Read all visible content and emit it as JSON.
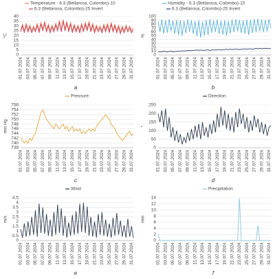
{
  "chart_data": [
    {
      "type": "line",
      "caption": "a",
      "ylabel": "°C",
      "ylim": [
        0,
        40
      ],
      "yticks": [
        0,
        5,
        10,
        15,
        20,
        25,
        30,
        35,
        40
      ],
      "grid": true,
      "categories": [
        "01.07.2024",
        null,
        null,
        null,
        "03.07.2024",
        null,
        null,
        null,
        "05.07.2024",
        null,
        null,
        null,
        "07.07.2024",
        null,
        null,
        null,
        "09.07.2024",
        null,
        null,
        null,
        "11.07.2024",
        null,
        null,
        null,
        "13.07.2024",
        null,
        null,
        null,
        "15.07.2024",
        null,
        null,
        null,
        "17.07.2024",
        null,
        null,
        null,
        "19.07.2024",
        null,
        null,
        null,
        "21.07.2024",
        null,
        null,
        null,
        "23.07.2024",
        null,
        null,
        null,
        "25.07.2024",
        null,
        null,
        null,
        "27.07.2024",
        null,
        null,
        null,
        "29.07.2024",
        null,
        null,
        null,
        "31.07.2024",
        null
      ],
      "series": [
        {
          "name": "Temperature - 6.3 (Bellarosa, Colombo)-10",
          "color": "#e8785e",
          "values": [
            26,
            32,
            25,
            33,
            26,
            31,
            25,
            30,
            26,
            33,
            25,
            34,
            27,
            35,
            26,
            32,
            25,
            31,
            26,
            33,
            27,
            36,
            26,
            37,
            27,
            35,
            26,
            34,
            25,
            32,
            26,
            31,
            25,
            33,
            26,
            34,
            27,
            35,
            26,
            33,
            25,
            31,
            26,
            30,
            25,
            32,
            26,
            33,
            25,
            34,
            26,
            32,
            25,
            31,
            24,
            30,
            25,
            31,
            26,
            30,
            25,
            28
          ]
        },
        {
          "name": "6.3 (Bellarosa, Colombo)-25  Invert",
          "color": "#c9485a",
          "values": [
            24,
            30,
            23,
            31,
            24,
            29,
            23,
            28,
            24,
            31,
            23,
            32,
            25,
            33,
            24,
            30,
            23,
            29,
            24,
            31,
            25,
            34,
            24,
            35,
            25,
            33,
            24,
            32,
            23,
            30,
            24,
            29,
            23,
            31,
            24,
            32,
            25,
            33,
            24,
            31,
            23,
            29,
            24,
            28,
            23,
            30,
            24,
            31,
            23,
            32,
            24,
            30,
            23,
            29,
            22,
            28,
            23,
            29,
            24,
            28,
            23,
            26
          ]
        }
      ]
    },
    {
      "type": "line",
      "caption": "b",
      "ylabel": "%",
      "ylim": [
        0,
        100
      ],
      "yticks": [
        0,
        10,
        20,
        30,
        40,
        50,
        60,
        70,
        80,
        90,
        100
      ],
      "grid": true,
      "categories": [
        "01.07.2024",
        null,
        null,
        null,
        "03.07.2024",
        null,
        null,
        null,
        "05.07.2024",
        null,
        null,
        null,
        "07.07.2024",
        null,
        null,
        null,
        "09.07.2024",
        null,
        null,
        null,
        "11.07.2024",
        null,
        null,
        null,
        "13.07.2024",
        null,
        null,
        null,
        "15.07.2024",
        null,
        null,
        null,
        "17.07.2024",
        null,
        null,
        null,
        "19.07.2024",
        null,
        null,
        null,
        "21.07.2024",
        null,
        null,
        null,
        "23.07.2024",
        null,
        null,
        null,
        "25.07.2024",
        null,
        null,
        null,
        "27.07.2024",
        null,
        null,
        null,
        "29.07.2024",
        null,
        null,
        null,
        "31.07.2024",
        null
      ],
      "series": [
        {
          "name": "Humidity - 6.3 (Bellarosa, Colombo)-10",
          "color": "#5ab4d6",
          "values": [
            88,
            60,
            92,
            55,
            90,
            58,
            93,
            62,
            89,
            55,
            91,
            52,
            90,
            50,
            88,
            57,
            92,
            60,
            90,
            55,
            88,
            48,
            90,
            45,
            87,
            50,
            91,
            52,
            93,
            58,
            90,
            60,
            92,
            55,
            89,
            53,
            90,
            50,
            88,
            56,
            92,
            60,
            93,
            62,
            91,
            57,
            90,
            55,
            92,
            52,
            91,
            57,
            93,
            60,
            94,
            62,
            92,
            60,
            91,
            62,
            93,
            70
          ]
        },
        {
          "name": "6.3 (Bellarosa, Colombo)-25  Invert",
          "color": "#2c3e66",
          "values": [
            8,
            9,
            8,
            10,
            9,
            8,
            9,
            10,
            8,
            9,
            9,
            10,
            10,
            11,
            10,
            11,
            11,
            12,
            11,
            12,
            12,
            13,
            12,
            13,
            12,
            12,
            13,
            13,
            12,
            13,
            13,
            13,
            14,
            14,
            13,
            14,
            14,
            15,
            14,
            15,
            14,
            15,
            15,
            15,
            14,
            15,
            15,
            16,
            15,
            16,
            16,
            15,
            16,
            17,
            16,
            17,
            16,
            17,
            17,
            17,
            16,
            17
          ]
        }
      ]
    },
    {
      "type": "line",
      "caption": "c",
      "ylabel": "mm Hg",
      "ylim": [
        738,
        756
      ],
      "yticks": [
        738,
        740,
        742,
        744,
        746,
        748,
        750,
        752,
        754,
        756
      ],
      "grid": true,
      "categories": [
        "01.07.2024",
        null,
        null,
        null,
        "03.07.2024",
        null,
        null,
        null,
        "05.07.2024",
        null,
        null,
        null,
        "07.07.2024",
        null,
        null,
        null,
        "09.07.2024",
        null,
        null,
        null,
        "11.07.2024",
        null,
        null,
        null,
        "13.07.2024",
        null,
        null,
        null,
        "15.07.2024",
        null,
        null,
        null,
        "17.07.2024",
        null,
        null,
        null,
        "19.07.2024",
        null,
        null,
        null,
        "21.07.2024",
        null,
        null,
        null,
        "23.07.2024",
        null,
        null,
        null,
        "25.07.2024",
        null,
        null,
        null,
        "27.07.2024",
        null,
        null,
        null,
        "29.07.2024",
        null,
        null,
        null,
        "31.07.2024",
        null
      ],
      "series": [
        {
          "name": "Pressure",
          "color": "#e5a33a",
          "values": [
            742,
            741,
            740,
            741,
            740,
            742,
            741,
            743,
            744,
            747,
            750,
            753,
            754,
            752,
            750,
            749,
            748,
            747,
            746,
            748,
            747,
            746,
            747,
            748,
            746,
            747,
            745,
            746,
            747,
            745,
            746,
            745,
            746,
            744,
            745,
            744,
            745,
            746,
            745,
            746,
            745,
            747,
            748,
            749,
            750,
            751,
            752,
            751,
            750,
            748,
            747,
            746,
            744,
            743,
            742,
            741,
            742,
            743,
            744,
            745,
            743,
            744
          ]
        }
      ]
    },
    {
      "type": "line",
      "caption": "d",
      "ylabel": "°",
      "ylim": [
        0,
        250
      ],
      "yticks": [
        0,
        50,
        100,
        150,
        200,
        250
      ],
      "grid": true,
      "categories": [
        "01.07.2024",
        null,
        null,
        null,
        "03.07.2024",
        null,
        null,
        null,
        "05.07.2024",
        null,
        null,
        null,
        "07.07.2024",
        null,
        null,
        null,
        "09.07.2024",
        null,
        null,
        null,
        "11.07.2024",
        null,
        null,
        null,
        "13.07.2024",
        null,
        null,
        null,
        "15.07.2024",
        null,
        null,
        null,
        "17.07.2024",
        null,
        null,
        null,
        "19.07.2024",
        null,
        null,
        null,
        "21.07.2024",
        null,
        null,
        null,
        "23.07.2024",
        null,
        null,
        null,
        "25.07.2024",
        null,
        null,
        null,
        "27.07.2024",
        null,
        null,
        null,
        "29.07.2024",
        null,
        null,
        null,
        "31.07.2024",
        null
      ],
      "series": [
        {
          "name": "Direction",
          "color": "#2e3b4e",
          "values": [
            200,
            150,
            220,
            120,
            230,
            100,
            180,
            60,
            120,
            40,
            100,
            30,
            80,
            20,
            60,
            30,
            90,
            40,
            110,
            50,
            130,
            60,
            140,
            50,
            150,
            70,
            120,
            60,
            140,
            80,
            160,
            90,
            200,
            120,
            240,
            130,
            220,
            110,
            200,
            100,
            180,
            90,
            210,
            120,
            230,
            140,
            200,
            110,
            180,
            90,
            160,
            100,
            190,
            120,
            170,
            90,
            150,
            80,
            140,
            70,
            120,
            130
          ]
        }
      ]
    },
    {
      "type": "line",
      "caption": "e",
      "ylabel": "m/s",
      "ylim": [
        0,
        4.5
      ],
      "yticks": [
        0,
        0.5,
        1,
        1.5,
        2,
        2.5,
        3,
        3.5,
        4,
        4.5
      ],
      "grid": true,
      "categories": [
        "01.07.2024",
        null,
        null,
        null,
        "03.07.2024",
        null,
        null,
        null,
        "05.07.2024",
        null,
        null,
        null,
        "07.07.2024",
        null,
        null,
        null,
        "09.07.2024",
        null,
        null,
        null,
        "11.07.2024",
        null,
        null,
        null,
        "13.07.2024",
        null,
        null,
        null,
        "15.07.2024",
        null,
        null,
        null,
        "17.07.2024",
        null,
        null,
        null,
        "19.07.2024",
        null,
        null,
        null,
        "21.07.2024",
        null,
        null,
        null,
        "23.07.2024",
        null,
        null,
        null,
        "25.07.2024",
        null,
        null,
        null,
        "27.07.2024",
        null,
        null,
        null,
        "29.07.2024",
        null,
        null,
        null,
        "31.07.2024",
        null
      ],
      "series": [
        {
          "name": "Wind",
          "color": "#2e3b4e",
          "values": [
            1.2,
            0.3,
            1.8,
            0.4,
            2.0,
            0.5,
            2.5,
            0.6,
            3.2,
            0.4,
            3.9,
            0.8,
            3.5,
            0.7,
            2.8,
            0.5,
            2.2,
            0.4,
            3.0,
            0.6,
            3.8,
            0.8,
            3.4,
            0.5,
            2.6,
            0.3,
            1.9,
            0.5,
            2.7,
            0.6,
            3.1,
            0.7,
            3.9,
            0.9,
            4.0,
            0.8,
            3.6,
            0.5,
            2.5,
            0.4,
            2.0,
            0.3,
            2.8,
            0.6,
            3.0,
            0.5,
            2.2,
            0.4,
            1.8,
            0.3,
            2.4,
            0.5,
            2.9,
            0.6,
            2.1,
            0.4,
            1.6,
            0.3,
            2.3,
            0.4,
            1.5,
            0.3
          ]
        }
      ]
    },
    {
      "type": "line",
      "caption": "f",
      "ylabel": "mm",
      "ylim": [
        0,
        14
      ],
      "yticks": [
        0,
        2,
        4,
        6,
        8,
        10,
        12,
        14
      ],
      "grid": true,
      "categories": [
        "01.07.2024",
        null,
        null,
        null,
        "03.07.2024",
        null,
        null,
        null,
        "05.07.2024",
        null,
        null,
        null,
        "07.07.2024",
        null,
        null,
        null,
        "09.07.2024",
        null,
        null,
        null,
        "11.07.2024",
        null,
        null,
        null,
        "13.07.2024",
        null,
        null,
        null,
        "15.07.2024",
        null,
        null,
        null,
        "17.07.2024",
        null,
        null,
        null,
        "19.07.2024",
        null,
        null,
        null,
        "21.07.2024",
        null,
        null,
        null,
        "23.07.2024",
        null,
        null,
        null,
        "25.07.2024",
        null,
        null,
        null,
        "27.07.2024",
        null,
        null,
        null,
        "29.07.2024",
        null,
        null,
        null,
        "31.07.2024",
        null
      ],
      "series": [
        {
          "name": "Precipitation",
          "color": "#8fc5e0",
          "values": [
            2,
            0,
            0,
            0,
            0,
            0,
            0,
            0,
            0,
            0,
            0,
            0,
            0,
            0,
            0,
            0,
            0,
            0,
            0,
            0,
            0,
            0,
            0,
            0,
            0,
            0,
            0,
            0,
            0,
            0,
            0,
            0,
            0,
            0,
            0,
            0,
            0,
            0,
            0,
            0,
            0,
            0,
            0,
            0,
            14,
            0,
            0,
            0,
            0,
            0,
            0,
            0,
            0,
            0,
            5,
            0,
            0,
            0,
            0,
            0,
            0,
            0
          ]
        }
      ]
    }
  ]
}
